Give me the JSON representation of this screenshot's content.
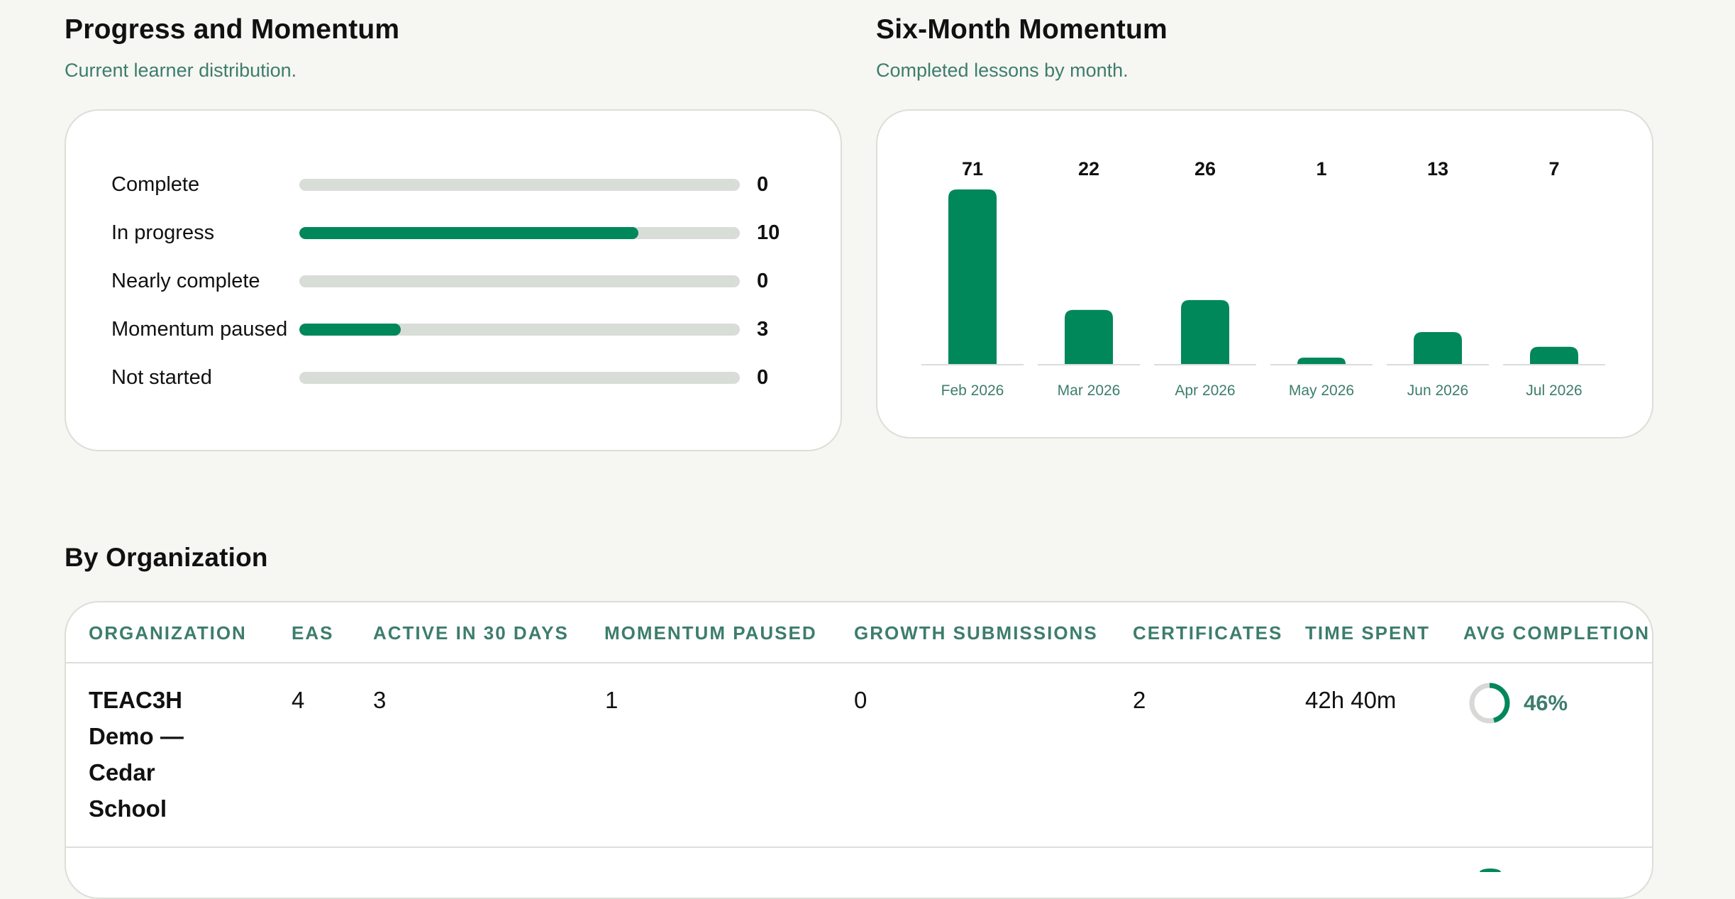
{
  "progress": {
    "title": "Progress and Momentum",
    "subtitle": "Current learner distribution.",
    "rows": [
      {
        "label": "Complete",
        "value": "0",
        "fraction": 0
      },
      {
        "label": "In progress",
        "value": "10",
        "fraction": 0.77
      },
      {
        "label": "Nearly complete",
        "value": "0",
        "fraction": 0
      },
      {
        "label": "Momentum paused",
        "value": "3",
        "fraction": 0.23
      },
      {
        "label": "Not started",
        "value": "0",
        "fraction": 0
      }
    ],
    "accent": "#00875a",
    "track": "#d8ddd7"
  },
  "momentum": {
    "title": "Six-Month Momentum",
    "subtitle": "Completed lessons by month."
  },
  "chart_data": {
    "type": "bar",
    "title": "Six-Month Momentum",
    "categories": [
      "Feb 2026",
      "Mar 2026",
      "Apr 2026",
      "May 2026",
      "Jun 2026",
      "Jul 2026"
    ],
    "values": [
      71,
      22,
      26,
      1,
      13,
      7
    ],
    "data_labels": [
      "71",
      "22",
      "26",
      "1",
      "13",
      "7"
    ],
    "ylim": [
      0,
      71
    ],
    "grid": false,
    "bar_color": "#00875a"
  },
  "org": {
    "title": "By Organization",
    "columns": [
      "ORGANIZATION",
      "EAS",
      "ACTIVE IN 30 DAYS",
      "MOMENTUM PAUSED",
      "GROWTH SUBMISSIONS",
      "CERTIFICATES",
      "TIME SPENT",
      "AVG COMPLETION"
    ],
    "rows": [
      {
        "organization": "TEAC3H Demo — Cedar School",
        "eas": "4",
        "active": "3",
        "paused": "1",
        "growth": "0",
        "certificates": "2",
        "time_spent": "42h 40m",
        "avg_completion": "46%",
        "avg_fraction": 0.46
      }
    ]
  },
  "colors": {
    "accent": "#00875a",
    "muted_green": "#3d7d6c",
    "ring_track": "#d6d9d5"
  }
}
